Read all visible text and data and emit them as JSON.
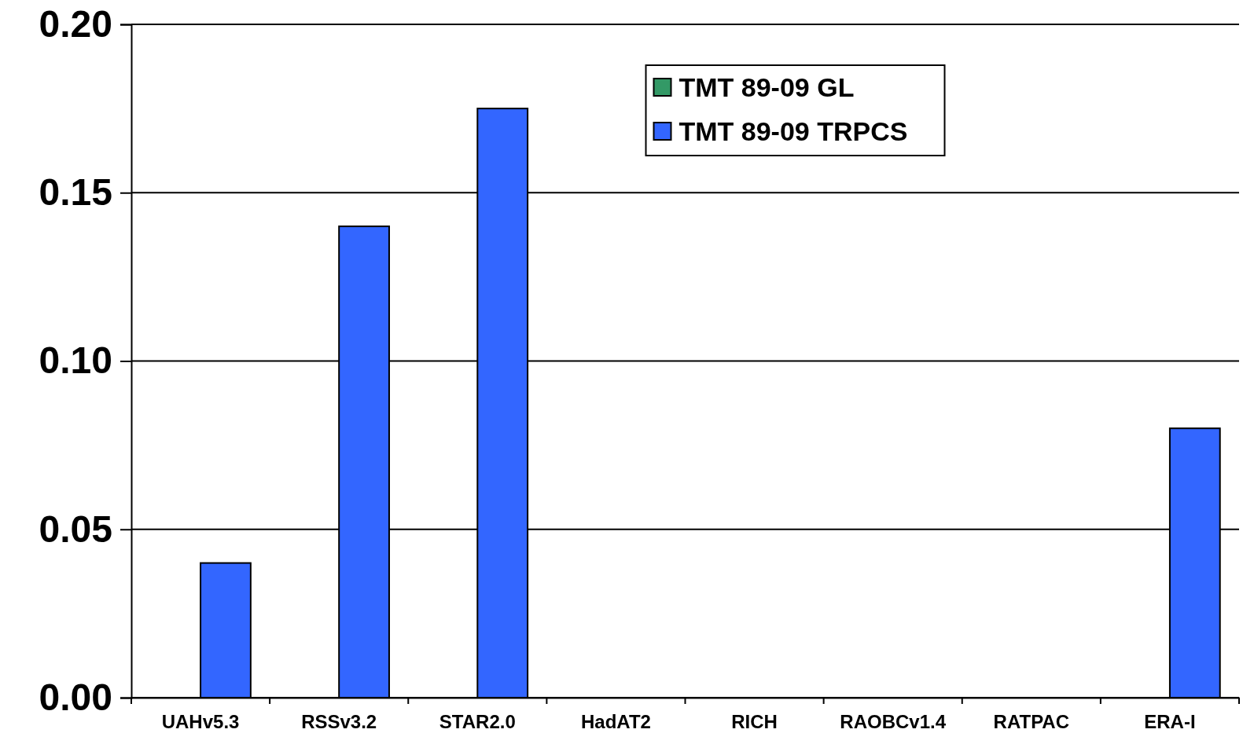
{
  "chart_data": {
    "type": "bar",
    "categories": [
      "UAHv5.3",
      "RSSv3.2",
      "STAR2.0",
      "HadAT2",
      "RICH",
      "RAOBCv1.4",
      "RATPAC",
      "ERA-I"
    ],
    "series": [
      {
        "name": "TMT 89-09 GL",
        "color": "#339966",
        "values": [
          null,
          null,
          null,
          null,
          null,
          null,
          null,
          null
        ]
      },
      {
        "name": "TMT 89-09 TRPCS",
        "color": "#3366ff",
        "values": [
          0.04,
          0.14,
          0.175,
          null,
          null,
          null,
          null,
          0.08
        ]
      }
    ],
    "ylim": [
      0,
      0.2
    ],
    "yticks": [
      {
        "value": 0,
        "label": "0.00"
      },
      {
        "value": 0.05,
        "label": "0.05"
      },
      {
        "value": 0.1,
        "label": "0.10"
      },
      {
        "value": 0.15,
        "label": "0.15"
      },
      {
        "value": 0.2,
        "label": "0.20"
      }
    ],
    "grid": "y",
    "legend": "top"
  }
}
